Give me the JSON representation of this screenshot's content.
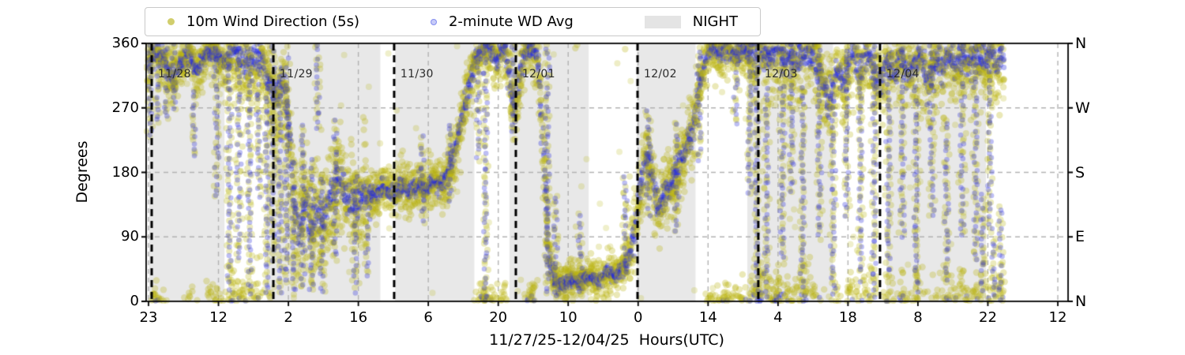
{
  "legend": {
    "items": [
      {
        "label": "10m Wind Direction (5s)",
        "marker": "yellow-dot"
      },
      {
        "label": "2-minute WD Avg",
        "marker": "blue-dot"
      },
      {
        "label": "NIGHT",
        "marker": "gray-patch"
      }
    ]
  },
  "chart_data": {
    "type": "scatter",
    "title": "",
    "xlabel": "11/27/25-12/04/25  Hours(UTC)",
    "ylabel": "Degrees",
    "ylim": [
      0,
      360
    ],
    "yticks": [
      0,
      90,
      180,
      270,
      360
    ],
    "ytick_labels_right": [
      "N",
      "E",
      "S",
      "W",
      "N"
    ],
    "xtick_labels": [
      "23",
      "12",
      "2",
      "16",
      "6",
      "20",
      "10",
      "0",
      "14",
      "4",
      "18",
      "8",
      "22",
      "12"
    ],
    "grid": "dashed-gray-on",
    "legend_position": "top",
    "colors": {
      "wd_5s": "#b8b410",
      "wd_2min": "#2328dc",
      "night": "#e8e8e8",
      "grid": "#b2b2b2",
      "day_line": "#000000"
    },
    "series": [
      {
        "name": "10m Wind Direction (5s)",
        "color": "#b8b410",
        "alpha": 0.3,
        "radius": 4.2
      },
      {
        "name": "2-minute WD Avg",
        "color": "#2328dc",
        "alpha": 0.32,
        "radius": 3.4
      }
    ],
    "day_lines": [
      {
        "f": 0.006,
        "label": "11/28"
      },
      {
        "f": 0.138,
        "label": "11/29"
      },
      {
        "f": 0.269,
        "label": "11/30"
      },
      {
        "f": 0.401,
        "label": "12/01"
      },
      {
        "f": 0.533,
        "label": "12/02"
      },
      {
        "f": 0.664,
        "label": "12/03"
      },
      {
        "f": 0.796,
        "label": "12/04"
      }
    ],
    "night_bands": [
      [
        0.003,
        0.085
      ],
      [
        0.131,
        0.254
      ],
      [
        0.27,
        0.356
      ],
      [
        0.394,
        0.48
      ],
      [
        0.532,
        0.596
      ],
      [
        0.652,
        0.745
      ],
      [
        0.803,
        0.911
      ]
    ],
    "data_span": [
      0.002,
      0.93
    ],
    "trend": [
      [
        0.002,
        330
      ],
      [
        0.01,
        350
      ],
      [
        0.02,
        335
      ],
      [
        0.03,
        305
      ],
      [
        0.038,
        335
      ],
      [
        0.048,
        345
      ],
      [
        0.056,
        320
      ],
      [
        0.066,
        350
      ],
      [
        0.076,
        345
      ],
      [
        0.086,
        330
      ],
      [
        0.094,
        350
      ],
      [
        0.104,
        340
      ],
      [
        0.114,
        332
      ],
      [
        0.124,
        345
      ],
      [
        0.132,
        312
      ],
      [
        0.14,
        285
      ],
      [
        0.148,
        305
      ],
      [
        0.155,
        255
      ],
      [
        0.161,
        120
      ],
      [
        0.167,
        95
      ],
      [
        0.173,
        150
      ],
      [
        0.179,
        85
      ],
      [
        0.185,
        130
      ],
      [
        0.192,
        110
      ],
      [
        0.2,
        150
      ],
      [
        0.21,
        168
      ],
      [
        0.218,
        142
      ],
      [
        0.227,
        130
      ],
      [
        0.237,
        155
      ],
      [
        0.247,
        145
      ],
      [
        0.257,
        160
      ],
      [
        0.267,
        150
      ],
      [
        0.277,
        162
      ],
      [
        0.287,
        152
      ],
      [
        0.295,
        165
      ],
      [
        0.303,
        156
      ],
      [
        0.311,
        170
      ],
      [
        0.319,
        162
      ],
      [
        0.327,
        178
      ],
      [
        0.334,
        205
      ],
      [
        0.342,
        252
      ],
      [
        0.35,
        302
      ],
      [
        0.358,
        342
      ],
      [
        0.366,
        356
      ],
      [
        0.374,
        350
      ],
      [
        0.381,
        335
      ],
      [
        0.389,
        355
      ],
      [
        0.395,
        302
      ],
      [
        0.4,
        258
      ],
      [
        0.405,
        315
      ],
      [
        0.411,
        350
      ],
      [
        0.418,
        356
      ],
      [
        0.425,
        342
      ],
      [
        0.431,
        205
      ],
      [
        0.437,
        60
      ],
      [
        0.443,
        28
      ],
      [
        0.451,
        22
      ],
      [
        0.461,
        30
      ],
      [
        0.471,
        26
      ],
      [
        0.481,
        34
      ],
      [
        0.491,
        30
      ],
      [
        0.5,
        40
      ],
      [
        0.508,
        36
      ],
      [
        0.516,
        46
      ],
      [
        0.524,
        62
      ],
      [
        0.53,
        92
      ],
      [
        0.535,
        150
      ],
      [
        0.54,
        185
      ],
      [
        0.545,
        208
      ],
      [
        0.55,
        162
      ],
      [
        0.556,
        132
      ],
      [
        0.563,
        150
      ],
      [
        0.571,
        166
      ],
      [
        0.579,
        186
      ],
      [
        0.586,
        216
      ],
      [
        0.593,
        242
      ],
      [
        0.599,
        292
      ],
      [
        0.606,
        332
      ],
      [
        0.613,
        352
      ],
      [
        0.621,
        344
      ],
      [
        0.63,
        352
      ],
      [
        0.64,
        342
      ],
      [
        0.65,
        352
      ],
      [
        0.659,
        344
      ],
      [
        0.667,
        352
      ],
      [
        0.676,
        340
      ],
      [
        0.685,
        355
      ],
      [
        0.694,
        342
      ],
      [
        0.704,
        330
      ],
      [
        0.714,
        352
      ],
      [
        0.724,
        338
      ],
      [
        0.734,
        308
      ],
      [
        0.741,
        272
      ],
      [
        0.749,
        330
      ],
      [
        0.757,
        302
      ],
      [
        0.765,
        345
      ],
      [
        0.773,
        322
      ],
      [
        0.781,
        350
      ],
      [
        0.789,
        330
      ],
      [
        0.797,
        302
      ],
      [
        0.804,
        342
      ],
      [
        0.812,
        322
      ],
      [
        0.82,
        346
      ],
      [
        0.827,
        312
      ],
      [
        0.834,
        342
      ],
      [
        0.842,
        330
      ],
      [
        0.849,
        302
      ],
      [
        0.856,
        342
      ],
      [
        0.863,
        322
      ],
      [
        0.871,
        346
      ],
      [
        0.879,
        330
      ],
      [
        0.886,
        350
      ],
      [
        0.893,
        336
      ],
      [
        0.901,
        346
      ],
      [
        0.908,
        332
      ],
      [
        0.915,
        350
      ],
      [
        0.922,
        340
      ],
      [
        0.93,
        344
      ]
    ],
    "spikes": [
      [
        0.004,
        360,
        230
      ],
      [
        0.012,
        360,
        250
      ],
      [
        0.022,
        360,
        255
      ],
      [
        0.03,
        360,
        268
      ],
      [
        0.052,
        300,
        205
      ],
      [
        0.076,
        360,
        150
      ],
      [
        0.09,
        360,
        20
      ],
      [
        0.1,
        360,
        60
      ],
      [
        0.112,
        360,
        12
      ],
      [
        0.122,
        330,
        150
      ],
      [
        0.131,
        320,
        8
      ],
      [
        0.138,
        360,
        60
      ],
      [
        0.145,
        300,
        12
      ],
      [
        0.152,
        340,
        30
      ],
      [
        0.16,
        200,
        12
      ],
      [
        0.17,
        250,
        20
      ],
      [
        0.18,
        200,
        15
      ],
      [
        0.186,
        360,
        240
      ],
      [
        0.191,
        180,
        12
      ],
      [
        0.205,
        250,
        60
      ],
      [
        0.227,
        180,
        15
      ],
      [
        0.24,
        150,
        40
      ],
      [
        0.3,
        230,
        110
      ],
      [
        0.33,
        250,
        140
      ],
      [
        0.36,
        360,
        200
      ],
      [
        0.368,
        360,
        8
      ],
      [
        0.398,
        360,
        240
      ],
      [
        0.435,
        360,
        12
      ],
      [
        0.444,
        150,
        8
      ],
      [
        0.47,
        120,
        12
      ],
      [
        0.52,
        180,
        30
      ],
      [
        0.545,
        272,
        120
      ],
      [
        0.575,
        250,
        100
      ],
      [
        0.6,
        360,
        200
      ],
      [
        0.64,
        360,
        250
      ],
      [
        0.655,
        360,
        150
      ],
      [
        0.662,
        360,
        12
      ],
      [
        0.673,
        300,
        8
      ],
      [
        0.69,
        360,
        60
      ],
      [
        0.7,
        360,
        150
      ],
      [
        0.712,
        300,
        20
      ],
      [
        0.73,
        360,
        90
      ],
      [
        0.745,
        280,
        8
      ],
      [
        0.76,
        360,
        120
      ],
      [
        0.775,
        330,
        30
      ],
      [
        0.79,
        360,
        8
      ],
      [
        0.805,
        340,
        40
      ],
      [
        0.82,
        360,
        90
      ],
      [
        0.835,
        300,
        12
      ],
      [
        0.852,
        360,
        120
      ],
      [
        0.868,
        250,
        30
      ],
      [
        0.885,
        360,
        90
      ],
      [
        0.9,
        330,
        60
      ],
      [
        0.907,
        150,
        4
      ],
      [
        0.915,
        360,
        100
      ],
      [
        0.92,
        90,
        4
      ],
      [
        0.927,
        130,
        4
      ]
    ],
    "spread_zones": [
      [
        0.0,
        0.085,
        26
      ],
      [
        0.085,
        0.155,
        45
      ],
      [
        0.155,
        0.24,
        55
      ],
      [
        0.24,
        0.33,
        28
      ],
      [
        0.33,
        0.43,
        30
      ],
      [
        0.43,
        0.52,
        20
      ],
      [
        0.52,
        0.6,
        38
      ],
      [
        0.6,
        0.655,
        26
      ],
      [
        0.655,
        0.935,
        48
      ]
    ]
  }
}
